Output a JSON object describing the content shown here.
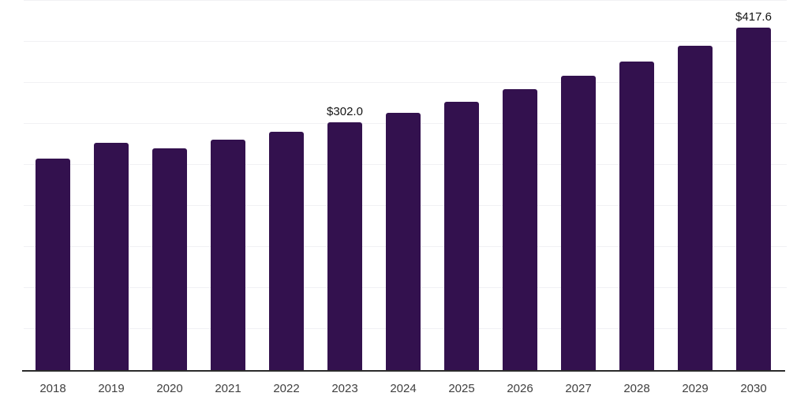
{
  "chart_data": {
    "type": "bar",
    "title": "",
    "xlabel": "",
    "ylabel": "",
    "categories": [
      "2018",
      "2019",
      "2020",
      "2021",
      "2022",
      "2023",
      "2024",
      "2025",
      "2026",
      "2027",
      "2028",
      "2029",
      "2030"
    ],
    "values": [
      258,
      277,
      270,
      281,
      290,
      302.0,
      313.5,
      327,
      342,
      358.5,
      376,
      395,
      417.6
    ],
    "value_labels": {
      "2023": "$302.0",
      "2030": "$417.6"
    },
    "ylim": [
      0,
      450
    ],
    "gridline_step": 50,
    "grid": "horizontal-only",
    "legend": "none",
    "colors": {
      "bar": "#33114E",
      "gridline": "#f1f1f4",
      "axis_line": "#2b2b2b",
      "tick_label": "#404040",
      "value_label": "#141414",
      "background": "#ffffff"
    }
  }
}
